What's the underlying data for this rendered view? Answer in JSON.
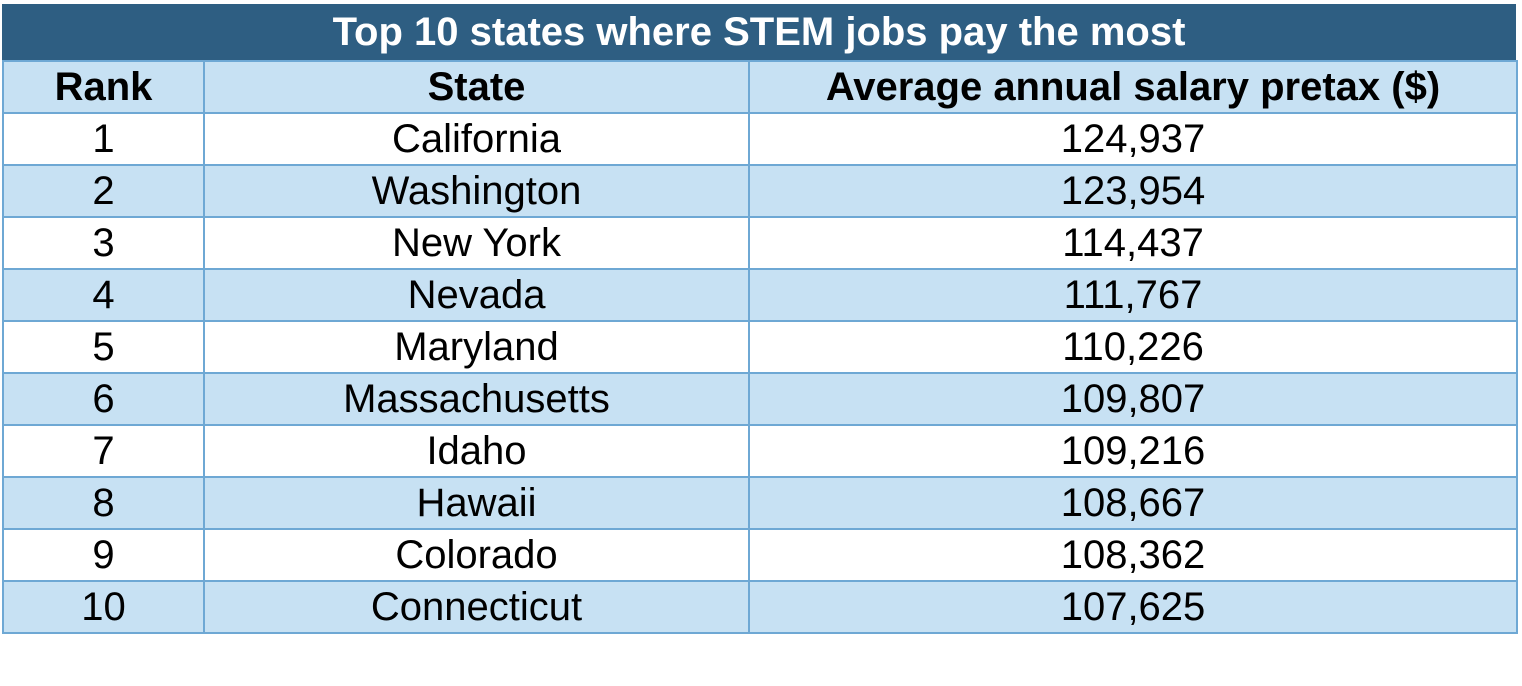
{
  "chart_data": {
    "type": "table",
    "title": "Top 10 states where STEM jobs pay the most",
    "columns": [
      "Rank",
      "State",
      "Average annual salary pretax ($)"
    ],
    "rows": [
      {
        "rank": "1",
        "state": "California",
        "salary": "124,937"
      },
      {
        "rank": "2",
        "state": "Washington",
        "salary": "123,954"
      },
      {
        "rank": "3",
        "state": "New York",
        "salary": "114,437"
      },
      {
        "rank": "4",
        "state": "Nevada",
        "salary": "111,767"
      },
      {
        "rank": "5",
        "state": "Maryland",
        "salary": "110,226"
      },
      {
        "rank": "6",
        "state": "Massachusetts",
        "salary": "109,807"
      },
      {
        "rank": "7",
        "state": "Idaho",
        "salary": "109,216"
      },
      {
        "rank": "8",
        "state": "Hawaii",
        "salary": "108,667"
      },
      {
        "rank": "9",
        "state": "Colorado",
        "salary": "108,362"
      },
      {
        "rank": "10",
        "state": "Connecticut",
        "salary": "107,625"
      }
    ]
  },
  "colors": {
    "title_background": "#2e5e82",
    "title_text": "#ffffff",
    "header_background": "#c7e1f3",
    "stripe_background": "#c7e1f3",
    "row_background": "#ffffff",
    "border": "#6ea8d4"
  }
}
